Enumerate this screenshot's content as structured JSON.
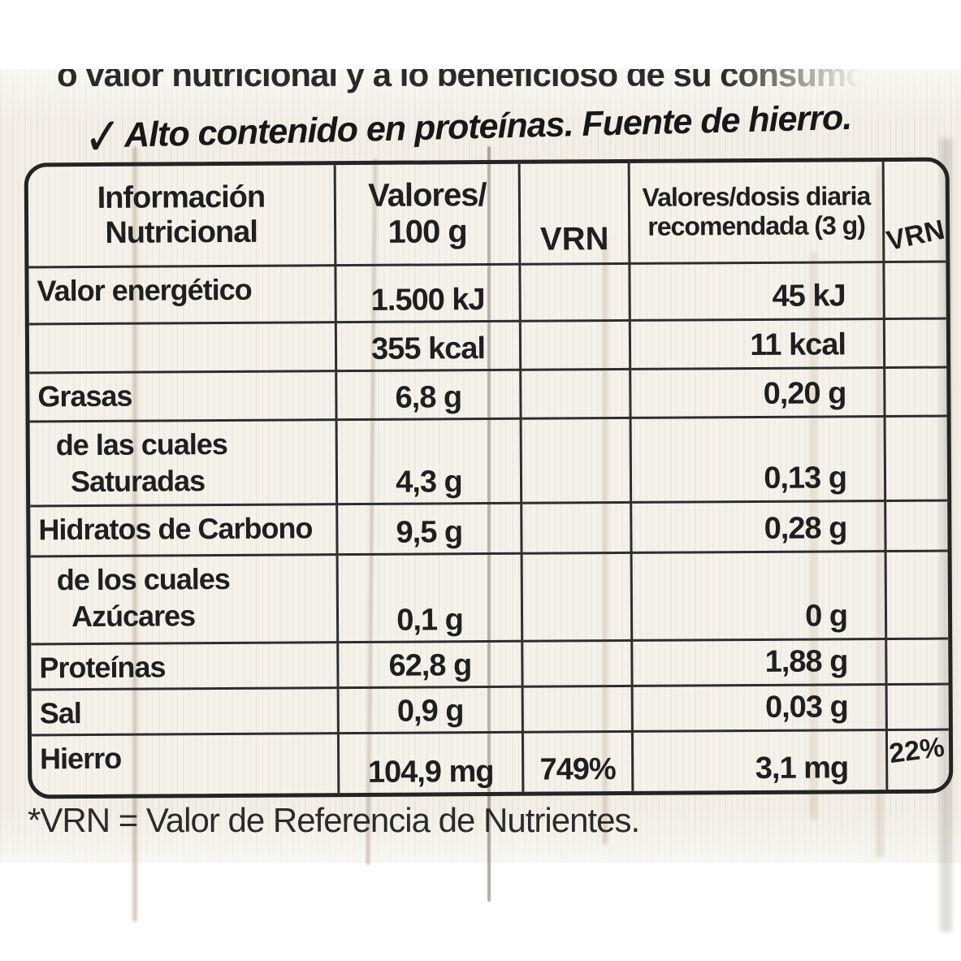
{
  "label": {
    "top_partial_text": "o valor nutricional y a lo beneficioso de su consumo",
    "claim_check": "✓",
    "claim_text": "Alto contenido en proteínas. Fuente de hierro.",
    "footnote": "*VRN = Valor de Referencia de Nutrientes."
  },
  "table": {
    "header": {
      "col1_line1": "Información",
      "col1_line2": "Nutricional",
      "col2_line1": "Valores/",
      "col2_line2": "100 g",
      "col3": "VRN",
      "col4_line1": "Valores/dosis diaria",
      "col4_line2": "recomendada (3 g)",
      "col5": "VRN"
    },
    "rows": [
      {
        "label1": "Valor energético",
        "label2": "",
        "per100": "1.500 kJ",
        "vrn100": "",
        "dose": "45 kJ",
        "vrndose": ""
      },
      {
        "label1": "",
        "label2": "",
        "per100": "355 kcal",
        "vrn100": "",
        "dose": "11 kcal",
        "vrndose": ""
      },
      {
        "label1": "Grasas",
        "label2": "",
        "per100": "6,8 g",
        "vrn100": "",
        "dose": "0,20 g",
        "vrndose": ""
      },
      {
        "label1": "de las cuales",
        "label2": "Saturadas",
        "per100": "4,3 g",
        "vrn100": "",
        "dose": "0,13 g",
        "vrndose": ""
      },
      {
        "label1": "Hidratos de Carbono",
        "label2": "",
        "per100": "9,5 g",
        "vrn100": "",
        "dose": "0,28 g",
        "vrndose": ""
      },
      {
        "label1": "de los cuales",
        "label2": "Azúcares",
        "per100": "0,1 g",
        "vrn100": "",
        "dose": "0 g",
        "vrndose": ""
      },
      {
        "label1": "Proteínas",
        "label2": "",
        "per100": "62,8 g",
        "vrn100": "",
        "dose": "1,88 g",
        "vrndose": ""
      },
      {
        "label1": "Sal",
        "label2": "",
        "per100": "0,9 g",
        "vrn100": "",
        "dose": "0,03 g",
        "vrndose": ""
      },
      {
        "label1": "Hierro",
        "label2": "",
        "per100": "104,9 mg",
        "vrn100": "749%",
        "dose": "3,1 mg",
        "vrndose": "22%"
      }
    ]
  }
}
